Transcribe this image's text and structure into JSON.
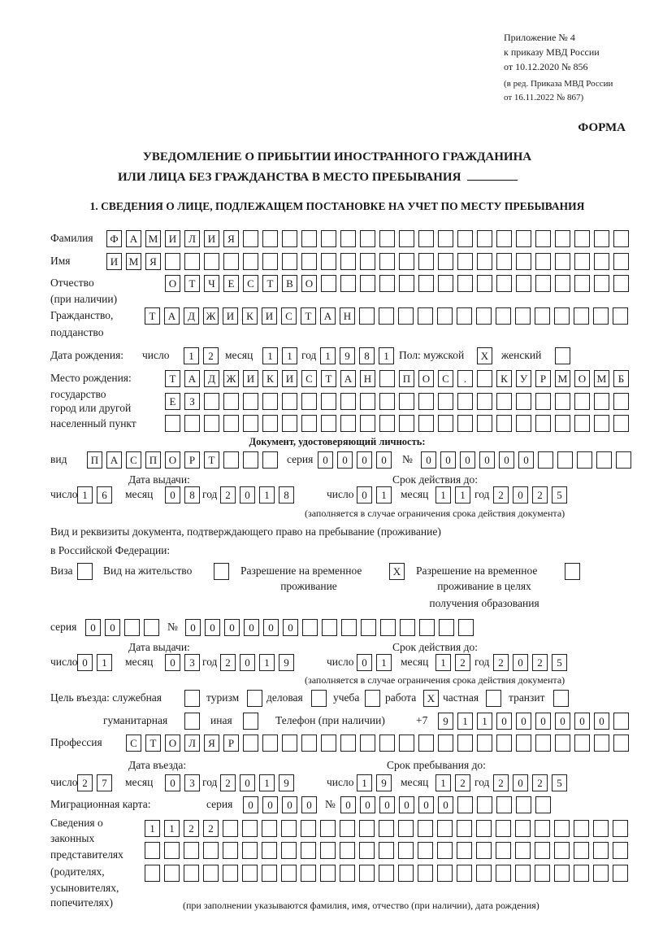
{
  "header": {
    "line1": "Приложение № 4",
    "line2": "к приказу МВД России",
    "line3": "от 10.12.2020 № 856",
    "line4": "(в ред. Приказа МВД России",
    "line5": "от 16.11.2022 № 867)",
    "forma": "ФОРМА"
  },
  "title": {
    "line1": "УВЕДОМЛЕНИЕ О ПРИБЫТИИ ИНОСТРАННОГО ГРАЖДАНИНА",
    "line2": "ИЛИ ЛИЦА БЕЗ ГРАЖДАНСТВА В МЕСТО ПРЕБЫВАНИЯ"
  },
  "section1": {
    "heading": "1. СВЕДЕНИЯ О ЛИЦЕ, ПОДЛЕЖАЩЕМ ПОСТАНОВКЕ НА УЧЕТ ПО МЕСТУ ПРЕБЫВАНИЯ"
  },
  "labels": {
    "surname": "Фамилия",
    "name": "Имя",
    "patronymic": "Отчество",
    "patronymic_note": "(при наличии)",
    "citizenship": "Гражданство,",
    "citizenship2": "подданство",
    "birth_date": "Дата рождения:",
    "day": "число",
    "month": "месяц",
    "year": "год",
    "sex": "Пол: мужской",
    "female": "женский",
    "birth_place": "Место рождения:",
    "birth_place2": "государство",
    "birth_place3": "город или другой",
    "birth_place4": "населенный пункт",
    "id_doc": "Документ, удостоверяющий личность:",
    "kind": "вид",
    "series": "серия",
    "number": "№",
    "issue_date": "Дата выдачи:",
    "valid_until": "Срок действия до:",
    "validity_note": "(заполняется в случае ограничения срока действия документа)",
    "right_doc1": "Вид и реквизиты документа, подтверждающего право на пребывание (проживание)",
    "right_doc2": "в Российской Федерации:",
    "visa": "Виза",
    "residence_permit": "Вид на жительство",
    "temp_residence1": "Разрешение на временное",
    "temp_residence2": "проживание",
    "temp_edu1": "Разрешение на временное",
    "temp_edu2": "проживание в целях",
    "temp_edu3": "получения образования",
    "purpose": "Цель въезда: служебная",
    "tourism": "туризм",
    "business": "деловая",
    "study": "учеба",
    "work": "работа",
    "private": "частная",
    "transit": "транзит",
    "humanitarian": "гуманитарная",
    "other": "иная",
    "phone": "Телефон (при наличии)",
    "phone_prefix": "+7",
    "profession": "Профессия",
    "entry_date": "Дата въезда:",
    "stay_until": "Срок пребывания до:",
    "migration_card": "Миграционная карта:",
    "reps1": "Сведения о",
    "reps2": "законных",
    "reps3": "представителях",
    "reps4": "(родителях,",
    "reps5": "усыновителях,",
    "reps6": "попечителях)",
    "reps_note": "(при заполнении указываются фамилия, имя, отчество (при наличии), дата рождения)"
  },
  "values": {
    "surname": "ФАМИЛИЯ",
    "name": "ИМЯ",
    "patronymic": "ОТЧЕСТВО",
    "citizenship": "ТАДЖИКИСТАН",
    "birth_day": "12",
    "birth_month": "11",
    "birth_year": "1981",
    "sex_male": "X",
    "sex_female": "",
    "birth_place_1": "ТАДЖИКИСТАН ПОС. КУРМОМБ",
    "birth_place_2": "ЕЗ",
    "birth_place_3": "",
    "id_kind": "ПАСПОРТ",
    "id_series": "0000",
    "id_number": "000000",
    "id_issue_day": "16",
    "id_issue_month": "08",
    "id_issue_year": "2018",
    "id_valid_day": "01",
    "id_valid_month": "11",
    "id_valid_year": "2025",
    "visa": "",
    "residence_permit": "",
    "temp_residence": "X",
    "temp_edu": "",
    "rd_series": "00",
    "rd_number": "000000",
    "rd_issue_day": "01",
    "rd_issue_month": "03",
    "rd_issue_year": "2019",
    "rd_valid_day": "01",
    "rd_valid_month": "12",
    "rd_valid_year": "2025",
    "p_service": "",
    "p_tourism": "",
    "p_business": "",
    "p_study": "",
    "p_work": "X",
    "p_private": "",
    "p_transit": "",
    "p_humanitarian": "",
    "p_other": "",
    "phone": "911000000",
    "profession": "СТОЛЯР",
    "entry_day": "27",
    "entry_month": "03",
    "entry_year": "2019",
    "stay_day": "19",
    "stay_month": "12",
    "stay_year": "2025",
    "mc_series": "0000",
    "mc_number": "000000",
    "reps_1": "1122",
    "reps_2": "",
    "reps_3": ""
  }
}
